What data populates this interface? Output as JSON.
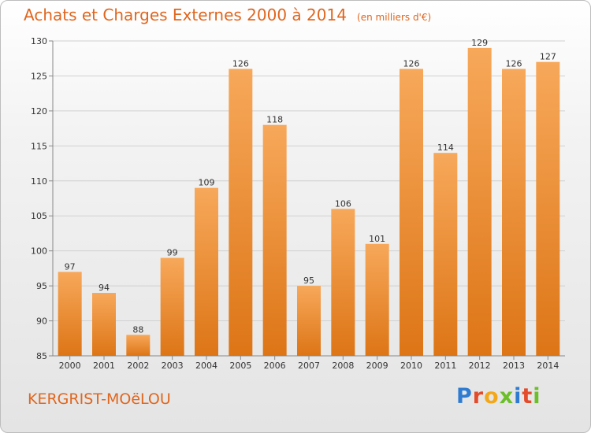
{
  "title": "Achats et Charges Externes 2000 à 2014",
  "subtitle": "(en milliers d'€)",
  "commune": "KERGRIST-MOëLOU",
  "logo": "Proxiti",
  "colors": {
    "accent": "#e0661e",
    "bar_top": "#f7a85a",
    "bar_bottom": "#df7818",
    "grid": "#cfcfcf"
  },
  "chart_data": {
    "type": "bar",
    "title": "Achats et Charges Externes 2000 à 2014",
    "subtitle": "(en milliers d'€)",
    "categories": [
      "2000",
      "2001",
      "2002",
      "2003",
      "2004",
      "2005",
      "2006",
      "2007",
      "2008",
      "2009",
      "2010",
      "2011",
      "2012",
      "2013",
      "2014"
    ],
    "values": [
      97,
      94,
      88,
      99,
      109,
      126,
      118,
      95,
      106,
      101,
      126,
      114,
      129,
      126,
      127
    ],
    "ylim": [
      85,
      130
    ],
    "yticks": [
      85,
      90,
      95,
      100,
      105,
      110,
      115,
      120,
      125,
      130
    ],
    "grid": true,
    "data_labels": true
  }
}
